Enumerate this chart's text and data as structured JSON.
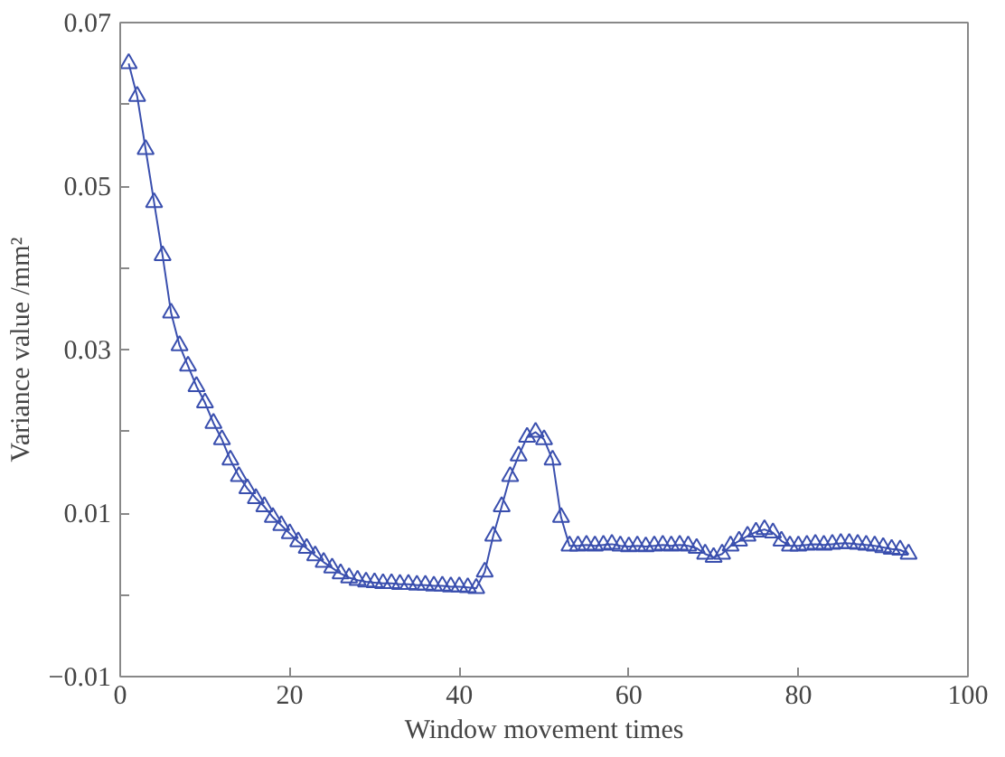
{
  "chart_data": {
    "type": "line",
    "xlabel": "Window movement times",
    "ylabel": "Variance value /mm²",
    "x": [
      1,
      2,
      3,
      4,
      5,
      6,
      7,
      8,
      9,
      10,
      11,
      12,
      13,
      14,
      15,
      16,
      17,
      18,
      19,
      20,
      21,
      22,
      23,
      24,
      25,
      26,
      27,
      28,
      29,
      30,
      31,
      32,
      33,
      34,
      35,
      36,
      37,
      38,
      39,
      40,
      41,
      42,
      43,
      44,
      45,
      46,
      47,
      48,
      49,
      50,
      51,
      52,
      53,
      54,
      55,
      56,
      57,
      58,
      59,
      60,
      61,
      62,
      63,
      64,
      65,
      66,
      67,
      68,
      69,
      70,
      71,
      72,
      73,
      74,
      75,
      76,
      77,
      78,
      79,
      80,
      81,
      82,
      83,
      84,
      85,
      86,
      87,
      88,
      89,
      90,
      91,
      92,
      93
    ],
    "series": [
      {
        "color": "#3a4fae",
        "values": [
          0.065,
          0.061,
          0.0545,
          0.048,
          0.0415,
          0.0345,
          0.0305,
          0.028,
          0.0255,
          0.0235,
          0.021,
          0.019,
          0.0165,
          0.0145,
          0.013,
          0.0118,
          0.0108,
          0.0095,
          0.0085,
          0.0075,
          0.0065,
          0.0057,
          0.0048,
          0.004,
          0.0033,
          0.0026,
          0.0021,
          0.0018,
          0.0016,
          0.0015,
          0.0014,
          0.0014,
          0.0013,
          0.0013,
          0.0012,
          0.0012,
          0.0011,
          0.0011,
          0.001,
          0.001,
          0.0009,
          0.0008,
          0.0028,
          0.0072,
          0.0108,
          0.0145,
          0.017,
          0.0193,
          0.0199,
          0.019,
          0.0165,
          0.0095,
          0.006,
          0.006,
          0.0061,
          0.006,
          0.0061,
          0.0062,
          0.006,
          0.0059,
          0.006,
          0.0059,
          0.006,
          0.0061,
          0.006,
          0.0061,
          0.006,
          0.0057,
          0.005,
          0.0046,
          0.005,
          0.006,
          0.0066,
          0.0072,
          0.0077,
          0.008,
          0.0076,
          0.0066,
          0.006,
          0.006,
          0.0061,
          0.0062,
          0.0061,
          0.0062,
          0.0063,
          0.0063,
          0.0062,
          0.0061,
          0.006,
          0.0058,
          0.0056,
          0.0055,
          0.005
        ]
      }
    ],
    "xlim": [
      0,
      100
    ],
    "xticks": [
      0,
      20,
      40,
      60,
      80,
      100
    ],
    "ylim": [
      -0.01,
      0.07
    ],
    "yticks": [
      {
        "value": -0.01,
        "label": "−0.01"
      },
      {
        "value": 0,
        "label": null
      },
      {
        "value": 0.01,
        "label": "0.01"
      },
      {
        "value": 0.02,
        "label": null
      },
      {
        "value": 0.03,
        "label": "0.03"
      },
      {
        "value": 0.04,
        "label": null
      },
      {
        "value": 0.05,
        "label": "0.05"
      },
      {
        "value": 0.06,
        "label": null
      },
      {
        "value": 0.07,
        "label": "0.07"
      }
    ],
    "marker": "triangle",
    "line_style": "solid",
    "grid": false
  }
}
